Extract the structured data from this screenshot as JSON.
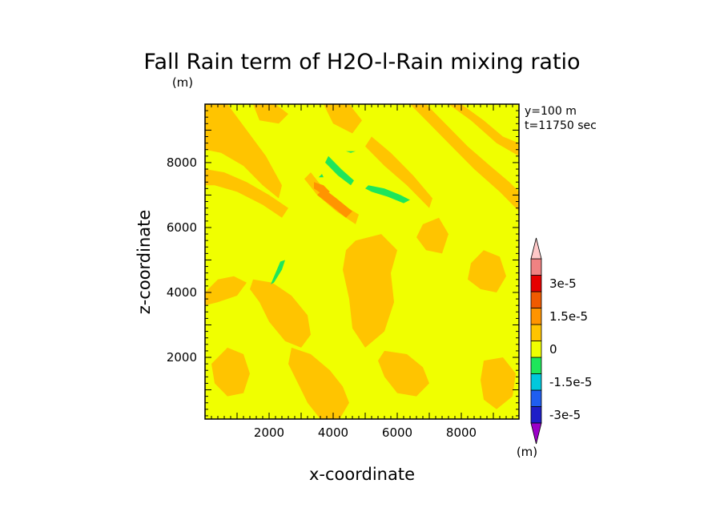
{
  "chart_data": {
    "type": "heatmap",
    "title": "Fall Rain term of H2O-l-Rain mixing ratio",
    "title_unit": "(m)",
    "xlabel": "x-coordinate",
    "ylabel": "z-coordinate",
    "xlim": [
      0,
      9800
    ],
    "ylim": [
      100,
      9800
    ],
    "xticks": [
      2000,
      4000,
      6000,
      8000
    ],
    "yticks": [
      2000,
      4000,
      6000,
      8000
    ],
    "info": [
      "y=100 m",
      "t=11750 sec"
    ],
    "background_level": "0 to 0.75e-5 (yellow)",
    "colorbar": {
      "unit": "(m)",
      "levels": [
        "-3e-5",
        "-1.5e-5",
        "0",
        "1.5e-5",
        "3e-5"
      ],
      "level_values": [
        -3e-05,
        -1.5e-05,
        0,
        1.5e-05,
        3e-05
      ],
      "colors": [
        "#9b00c8",
        "#1e1ec8",
        "#1f5ef0",
        "#00c8dc",
        "#1ee65a",
        "#f0ff00",
        "#ffc400",
        "#ff9400",
        "#f05a00",
        "#e60000",
        "#f08282",
        "#ffc8c8"
      ]
    },
    "regions": [
      {
        "level": "orange",
        "color": "#ffc400",
        "points": [
          [
            0,
            9800
          ],
          [
            700,
            9800
          ],
          [
            1300,
            9000
          ],
          [
            1900,
            8200
          ],
          [
            2400,
            7300
          ],
          [
            2300,
            6900
          ],
          [
            1800,
            7300
          ],
          [
            1200,
            7900
          ],
          [
            500,
            8300
          ],
          [
            0,
            8400
          ]
        ]
      },
      {
        "level": "orange",
        "color": "#ffc400",
        "points": [
          [
            0,
            7800
          ],
          [
            600,
            7700
          ],
          [
            1300,
            7400
          ],
          [
            2000,
            7000
          ],
          [
            2600,
            6600
          ],
          [
            2400,
            6300
          ],
          [
            1800,
            6700
          ],
          [
            1000,
            7100
          ],
          [
            300,
            7300
          ],
          [
            0,
            7300
          ]
        ]
      },
      {
        "level": "orange",
        "color": "#ffc400",
        "points": [
          [
            3300,
            7700
          ],
          [
            3700,
            7200
          ],
          [
            4300,
            6700
          ],
          [
            4800,
            6400
          ],
          [
            4700,
            6100
          ],
          [
            4100,
            6500
          ],
          [
            3500,
            7000
          ],
          [
            3100,
            7500
          ]
        ]
      },
      {
        "level": "orange",
        "color": "#ffc400",
        "points": [
          [
            5200,
            8800
          ],
          [
            5800,
            8300
          ],
          [
            6500,
            7600
          ],
          [
            7100,
            6900
          ],
          [
            7000,
            6600
          ],
          [
            6300,
            7300
          ],
          [
            5600,
            7900
          ],
          [
            5000,
            8500
          ]
        ]
      },
      {
        "level": "orange",
        "color": "#ffc400",
        "points": [
          [
            6900,
            9800
          ],
          [
            7500,
            9200
          ],
          [
            8200,
            8500
          ],
          [
            8900,
            7900
          ],
          [
            9500,
            7400
          ],
          [
            9800,
            7100
          ],
          [
            9800,
            6500
          ],
          [
            9200,
            7100
          ],
          [
            8400,
            7800
          ],
          [
            7700,
            8500
          ],
          [
            7000,
            9200
          ],
          [
            6400,
            9800
          ]
        ]
      },
      {
        "level": "orange",
        "color": "#ffc400",
        "points": [
          [
            8000,
            9800
          ],
          [
            8700,
            9300
          ],
          [
            9300,
            8800
          ],
          [
            9800,
            8600
          ],
          [
            9800,
            8200
          ],
          [
            9100,
            8600
          ],
          [
            8300,
            9300
          ],
          [
            7600,
            9800
          ]
        ]
      },
      {
        "level": "orange",
        "color": "#ffc400",
        "points": [
          [
            4700,
            5600
          ],
          [
            5500,
            5800
          ],
          [
            6000,
            5300
          ],
          [
            5800,
            4600
          ],
          [
            5900,
            3700
          ],
          [
            5600,
            2800
          ],
          [
            5000,
            2300
          ],
          [
            4600,
            2900
          ],
          [
            4500,
            3800
          ],
          [
            4300,
            4700
          ],
          [
            4400,
            5300
          ]
        ]
      },
      {
        "level": "orange",
        "color": "#ffc400",
        "points": [
          [
            1500,
            4400
          ],
          [
            2100,
            4300
          ],
          [
            2700,
            3900
          ],
          [
            3200,
            3300
          ],
          [
            3300,
            2700
          ],
          [
            3000,
            2300
          ],
          [
            2500,
            2500
          ],
          [
            2000,
            3100
          ],
          [
            1700,
            3700
          ],
          [
            1400,
            4100
          ]
        ]
      },
      {
        "level": "orange",
        "color": "#ffc400",
        "points": [
          [
            2700,
            2300
          ],
          [
            3300,
            2100
          ],
          [
            3900,
            1600
          ],
          [
            4300,
            1100
          ],
          [
            4500,
            600
          ],
          [
            4200,
            100
          ],
          [
            3600,
            100
          ],
          [
            3200,
            600
          ],
          [
            2900,
            1200
          ],
          [
            2600,
            1800
          ]
        ]
      },
      {
        "level": "orange",
        "color": "#ffc400",
        "points": [
          [
            0,
            4000
          ],
          [
            400,
            4400
          ],
          [
            900,
            4500
          ],
          [
            1300,
            4300
          ],
          [
            1000,
            3900
          ],
          [
            400,
            3700
          ],
          [
            0,
            3600
          ]
        ]
      },
      {
        "level": "orange",
        "color": "#ffc400",
        "points": [
          [
            700,
            2300
          ],
          [
            1200,
            2100
          ],
          [
            1400,
            1500
          ],
          [
            1200,
            900
          ],
          [
            700,
            800
          ],
          [
            300,
            1200
          ],
          [
            200,
            1800
          ]
        ]
      },
      {
        "level": "orange",
        "color": "#ffc400",
        "points": [
          [
            8300,
            4900
          ],
          [
            8700,
            5300
          ],
          [
            9200,
            5100
          ],
          [
            9400,
            4500
          ],
          [
            9100,
            4000
          ],
          [
            8600,
            4100
          ],
          [
            8200,
            4400
          ]
        ]
      },
      {
        "level": "orange",
        "color": "#ffc400",
        "points": [
          [
            8700,
            1900
          ],
          [
            9300,
            2000
          ],
          [
            9700,
            1500
          ],
          [
            9600,
            800
          ],
          [
            9100,
            400
          ],
          [
            8700,
            700
          ],
          [
            8600,
            1300
          ]
        ]
      },
      {
        "level": "orange",
        "color": "#ffc400",
        "points": [
          [
            6800,
            6100
          ],
          [
            7300,
            6300
          ],
          [
            7600,
            5800
          ],
          [
            7400,
            5200
          ],
          [
            6900,
            5300
          ],
          [
            6600,
            5700
          ]
        ]
      },
      {
        "level": "orange",
        "color": "#ffc400",
        "points": [
          [
            5600,
            2200
          ],
          [
            6300,
            2100
          ],
          [
            6800,
            1700
          ],
          [
            7000,
            1200
          ],
          [
            6600,
            800
          ],
          [
            6000,
            900
          ],
          [
            5600,
            1400
          ],
          [
            5400,
            1900
          ]
        ]
      },
      {
        "level": "orange",
        "color": "#ffc400",
        "points": [
          [
            1500,
            9800
          ],
          [
            2200,
            9800
          ],
          [
            2600,
            9500
          ],
          [
            2300,
            9200
          ],
          [
            1700,
            9300
          ]
        ]
      },
      {
        "level": "orange",
        "color": "#ffc400",
        "points": [
          [
            3700,
            9800
          ],
          [
            4500,
            9800
          ],
          [
            4900,
            9300
          ],
          [
            4600,
            8900
          ],
          [
            4000,
            9200
          ]
        ]
      },
      {
        "level": "orange-dark",
        "color": "#ff9400",
        "points": [
          [
            3500,
            7000
          ],
          [
            3900,
            6700
          ],
          [
            4400,
            6300
          ],
          [
            4600,
            6500
          ],
          [
            4100,
            6900
          ],
          [
            3700,
            7200
          ]
        ]
      },
      {
        "level": "orange-dark",
        "color": "#ff9400",
        "points": [
          [
            3400,
            7400
          ],
          [
            3700,
            7300
          ],
          [
            3900,
            7100
          ],
          [
            3700,
            7000
          ],
          [
            3400,
            7200
          ]
        ]
      },
      {
        "level": "green",
        "color": "#1ee65a",
        "points": [
          [
            3850,
            8200
          ],
          [
            4250,
            7800
          ],
          [
            4650,
            7450
          ],
          [
            4550,
            7300
          ],
          [
            4150,
            7600
          ],
          [
            3750,
            8000
          ]
        ]
      },
      {
        "level": "green",
        "color": "#1ee65a",
        "points": [
          [
            5100,
            7300
          ],
          [
            5600,
            7200
          ],
          [
            6100,
            7000
          ],
          [
            6400,
            6850
          ],
          [
            6200,
            6750
          ],
          [
            5700,
            6950
          ],
          [
            5200,
            7100
          ],
          [
            5000,
            7200
          ]
        ]
      },
      {
        "level": "green",
        "color": "#1ee65a",
        "points": [
          [
            2050,
            4250
          ],
          [
            2350,
            4950
          ],
          [
            2500,
            5000
          ],
          [
            2400,
            4700
          ],
          [
            2150,
            4300
          ]
        ]
      },
      {
        "level": "green",
        "color": "#1ee65a",
        "points": [
          [
            3550,
            7550
          ],
          [
            3650,
            7650
          ],
          [
            3700,
            7550
          ]
        ]
      },
      {
        "level": "green",
        "color": "#1ee65a",
        "points": [
          [
            4400,
            8350
          ],
          [
            4700,
            8350
          ],
          [
            4550,
            8300
          ]
        ]
      }
    ]
  }
}
